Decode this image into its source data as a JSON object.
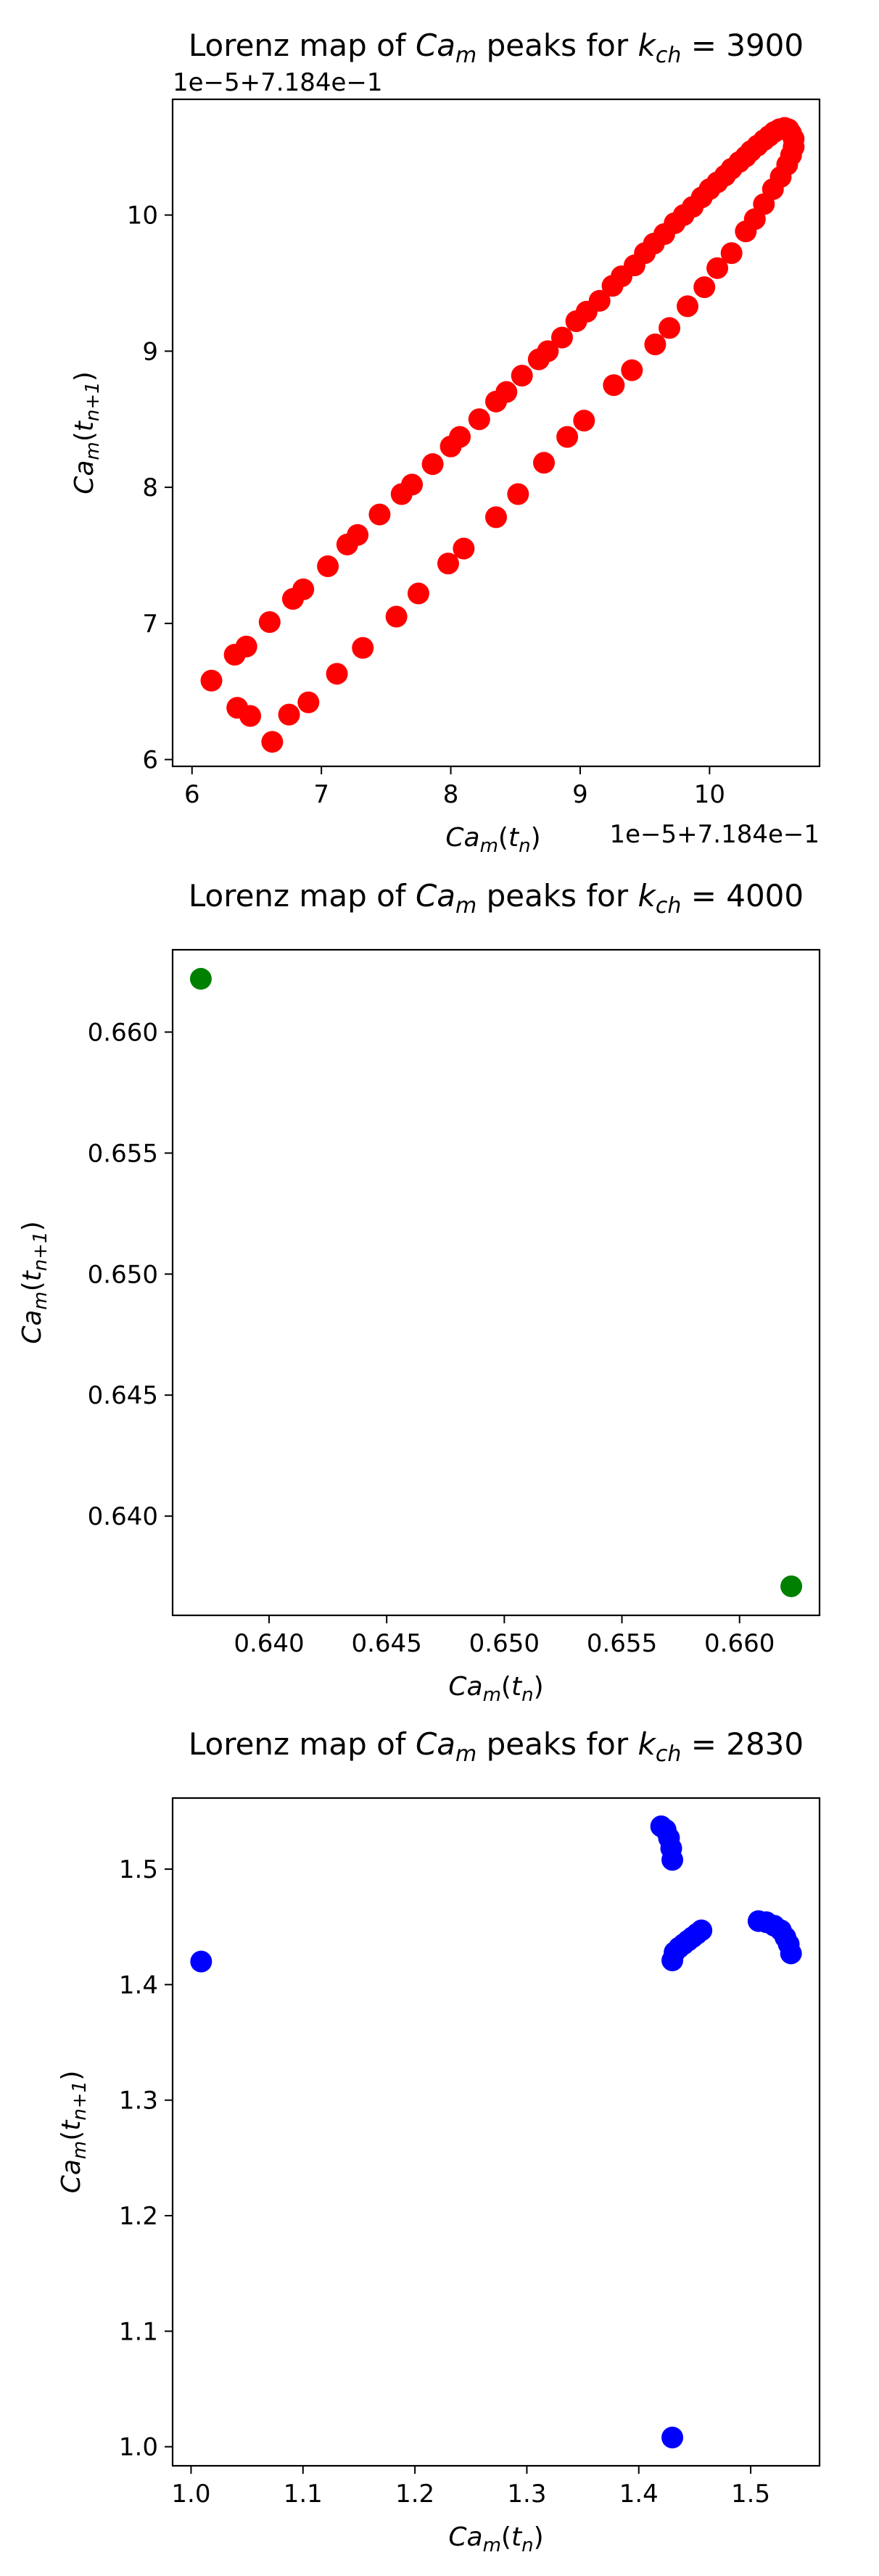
{
  "chart_data": [
    {
      "type": "scatter",
      "title_prefix": "Lorenz map of ",
      "title_var": "Ca",
      "title_var_sub": "m",
      "title_mid": " peaks for ",
      "title_param": "k",
      "title_param_sub": "ch",
      "title_value": " = 3900",
      "xlabel": "Ca_m(t_n)",
      "ylabel": "Ca_m(t_n+1)",
      "x_offset_text": "1e−5+7.184e−1",
      "y_offset_text": "1e−5+7.184e−1",
      "xlim": [
        5.85,
        10.85
      ],
      "ylim": [
        5.95,
        10.85
      ],
      "xticks": [
        6,
        7,
        8,
        9,
        10
      ],
      "yticks": [
        6,
        7,
        8,
        9,
        10
      ],
      "xtick_labels": [
        "6",
        "7",
        "8",
        "9",
        "10"
      ],
      "ytick_labels": [
        "6",
        "7",
        "8",
        "9",
        "10"
      ],
      "color": "#ff0000",
      "points": [
        [
          6.15,
          6.58
        ],
        [
          6.33,
          6.77
        ],
        [
          6.42,
          6.83
        ],
        [
          6.6,
          7.01
        ],
        [
          6.78,
          7.18
        ],
        [
          6.86,
          7.25
        ],
        [
          7.05,
          7.42
        ],
        [
          7.2,
          7.58
        ],
        [
          7.28,
          7.65
        ],
        [
          7.45,
          7.8
        ],
        [
          7.62,
          7.95
        ],
        [
          7.7,
          8.02
        ],
        [
          7.86,
          8.17
        ],
        [
          8.0,
          8.3
        ],
        [
          8.07,
          8.37
        ],
        [
          8.22,
          8.5
        ],
        [
          8.35,
          8.63
        ],
        [
          8.43,
          8.7
        ],
        [
          8.55,
          8.82
        ],
        [
          8.68,
          8.94
        ],
        [
          8.75,
          9.0
        ],
        [
          8.86,
          9.1
        ],
        [
          8.97,
          9.22
        ],
        [
          9.05,
          9.29
        ],
        [
          9.15,
          9.37
        ],
        [
          9.25,
          9.48
        ],
        [
          9.32,
          9.55
        ],
        [
          9.42,
          9.63
        ],
        [
          9.5,
          9.72
        ],
        [
          9.57,
          9.79
        ],
        [
          9.65,
          9.86
        ],
        [
          9.73,
          9.94
        ],
        [
          9.8,
          10.0
        ],
        [
          9.87,
          10.06
        ],
        [
          9.94,
          10.13
        ],
        [
          10.0,
          10.19
        ],
        [
          10.06,
          10.24
        ],
        [
          10.12,
          10.29
        ],
        [
          10.17,
          10.34
        ],
        [
          10.23,
          10.39
        ],
        [
          10.28,
          10.43
        ],
        [
          10.32,
          10.47
        ],
        [
          10.37,
          10.51
        ],
        [
          10.42,
          10.55
        ],
        [
          10.46,
          10.58
        ],
        [
          10.5,
          10.61
        ],
        [
          10.54,
          10.63
        ],
        [
          10.58,
          10.64
        ],
        [
          10.61,
          10.63
        ],
        [
          10.63,
          10.6
        ],
        [
          10.65,
          10.56
        ],
        [
          10.65,
          10.5
        ],
        [
          10.63,
          10.44
        ],
        [
          10.6,
          10.37
        ],
        [
          10.55,
          10.28
        ],
        [
          10.49,
          10.19
        ],
        [
          10.42,
          10.08
        ],
        [
          10.35,
          9.97
        ],
        [
          10.28,
          9.88
        ],
        [
          10.17,
          9.72
        ],
        [
          10.06,
          9.61
        ],
        [
          9.96,
          9.47
        ],
        [
          9.83,
          9.33
        ],
        [
          9.69,
          9.17
        ],
        [
          9.58,
          9.05
        ],
        [
          9.4,
          8.86
        ],
        [
          9.26,
          8.75
        ],
        [
          9.03,
          8.49
        ],
        [
          8.9,
          8.37
        ],
        [
          8.72,
          8.18
        ],
        [
          8.52,
          7.95
        ],
        [
          8.35,
          7.78
        ],
        [
          8.1,
          7.55
        ],
        [
          7.98,
          7.44
        ],
        [
          7.75,
          7.22
        ],
        [
          7.58,
          7.05
        ],
        [
          7.32,
          6.82
        ],
        [
          7.12,
          6.63
        ],
        [
          6.9,
          6.42
        ],
        [
          6.75,
          6.33
        ],
        [
          6.62,
          6.13
        ],
        [
          6.35,
          6.38
        ],
        [
          6.45,
          6.32
        ]
      ]
    },
    {
      "type": "scatter",
      "title_prefix": "Lorenz map of ",
      "title_var": "Ca",
      "title_var_sub": "m",
      "title_mid": " peaks for ",
      "title_param": "k",
      "title_param_sub": "ch",
      "title_value": " = 4000",
      "xlabel": "Ca_m(t_n)",
      "ylabel": "Ca_m(t_n+1)",
      "xlim": [
        0.6359,
        0.6634
      ],
      "ylim": [
        0.6359,
        0.6634
      ],
      "xticks": [
        0.64,
        0.645,
        0.65,
        0.655,
        0.66
      ],
      "yticks": [
        0.64,
        0.645,
        0.65,
        0.655,
        0.66
      ],
      "xtick_labels": [
        "0.640",
        "0.645",
        "0.650",
        "0.655",
        "0.660"
      ],
      "ytick_labels": [
        "0.640",
        "0.645",
        "0.650",
        "0.655",
        "0.660"
      ],
      "color": "#008000",
      "points": [
        [
          0.6371,
          0.6622
        ],
        [
          0.6622,
          0.6371
        ]
      ]
    },
    {
      "type": "scatter",
      "title_prefix": "Lorenz map of ",
      "title_var": "Ca",
      "title_var_sub": "m",
      "title_mid": " peaks for ",
      "title_param": "k",
      "title_param_sub": "ch",
      "title_value": " = 2830",
      "xlabel": "Ca_m(t_n)",
      "ylabel": "Ca_m(t_n+1)",
      "xlim": [
        0.9835,
        1.5615
      ],
      "ylim": [
        0.9835,
        1.5615
      ],
      "xticks": [
        1.0,
        1.1,
        1.2,
        1.3,
        1.4,
        1.5
      ],
      "yticks": [
        1.0,
        1.1,
        1.2,
        1.3,
        1.4,
        1.5
      ],
      "xtick_labels": [
        "1.0",
        "1.1",
        "1.2",
        "1.3",
        "1.4",
        "1.5"
      ],
      "ytick_labels": [
        "1.0",
        "1.1",
        "1.2",
        "1.3",
        "1.4",
        "1.5"
      ],
      "color": "#0000ff",
      "points": [
        [
          1.009,
          1.42
        ],
        [
          1.43,
          1.008
        ],
        [
          1.42,
          1.537
        ],
        [
          1.424,
          1.534
        ],
        [
          1.427,
          1.527
        ],
        [
          1.429,
          1.518
        ],
        [
          1.43,
          1.508
        ],
        [
          1.43,
          1.421
        ],
        [
          1.432,
          1.428
        ],
        [
          1.436,
          1.432
        ],
        [
          1.44,
          1.435
        ],
        [
          1.444,
          1.438
        ],
        [
          1.448,
          1.441
        ],
        [
          1.452,
          1.444
        ],
        [
          1.456,
          1.447
        ],
        [
          1.507,
          1.455
        ],
        [
          1.514,
          1.454
        ],
        [
          1.521,
          1.451
        ],
        [
          1.527,
          1.447
        ],
        [
          1.531,
          1.441
        ],
        [
          1.534,
          1.435
        ],
        [
          1.536,
          1.427
        ]
      ]
    }
  ]
}
